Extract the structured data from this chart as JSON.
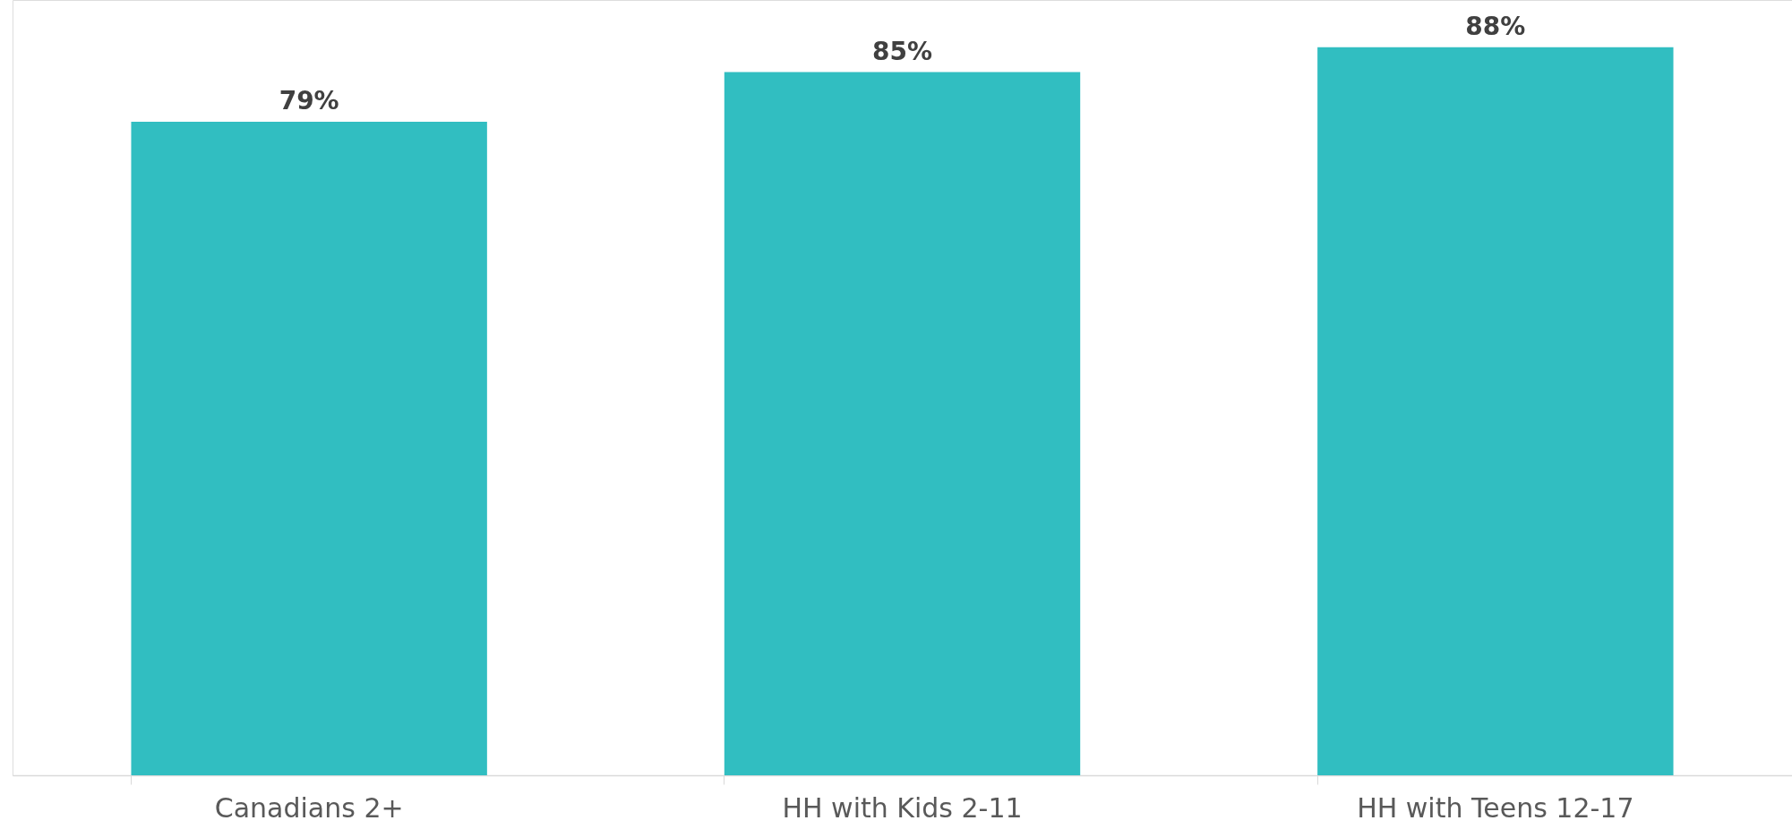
{
  "chart_data": {
    "type": "bar",
    "categories": [
      "Canadians 2+",
      "HH with Kids 2-11",
      "HH with Teens 12-17"
    ],
    "values": [
      79,
      85,
      88
    ],
    "color": "#31bec1",
    "value_labels": [
      "79%",
      "85%",
      "88%"
    ]
  }
}
